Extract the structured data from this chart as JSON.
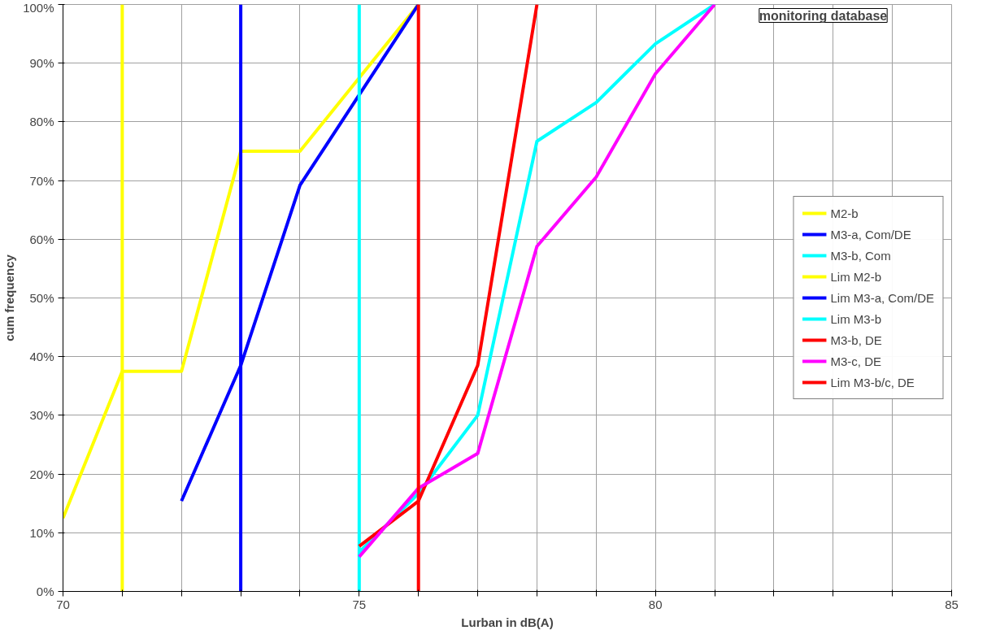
{
  "chart_data": {
    "type": "line",
    "xlabel": "Lurban in dB(A)",
    "ylabel": "cum frequency",
    "annotations": [
      "monitoring database"
    ],
    "xlim": [
      70,
      85
    ],
    "xticks": [
      70,
      {
        "value": 71,
        "label": null
      },
      {
        "value": 72,
        "label": null
      },
      {
        "value": 73,
        "label": null
      },
      {
        "value": 74,
        "label": null
      },
      75,
      {
        "value": 76,
        "label": null
      },
      {
        "value": 77,
        "label": null
      },
      {
        "value": 78,
        "label": null
      },
      {
        "value": 79,
        "label": null
      },
      80,
      {
        "value": 81,
        "label": null
      },
      {
        "value": 82,
        "label": null
      },
      {
        "value": 83,
        "label": null
      },
      {
        "value": 84,
        "label": null
      },
      85
    ],
    "ylim": [
      0,
      100
    ],
    "yticks": [
      {
        "value": 0,
        "label": "0%"
      },
      {
        "value": 10,
        "label": "10%"
      },
      {
        "value": 20,
        "label": "20%"
      },
      {
        "value": 30,
        "label": "30%"
      },
      {
        "value": 40,
        "label": "40%"
      },
      {
        "value": 50,
        "label": "50%"
      },
      {
        "value": 60,
        "label": "60%"
      },
      {
        "value": 70,
        "label": "70%"
      },
      {
        "value": 80,
        "label": "80%"
      },
      {
        "value": 90,
        "label": "90%"
      },
      {
        "value": 100,
        "label": "100%"
      }
    ],
    "grid": true,
    "legend": "right",
    "marker": "none",
    "line_style": "solid",
    "series": [
      {
        "name": "M2-b",
        "color": "#ffff00",
        "x": [
          70,
          71,
          72,
          73,
          74,
          75,
          76
        ],
        "values": [
          12.5,
          37.5,
          37.5,
          75,
          75,
          87.5,
          100
        ]
      },
      {
        "name": "M3-a, Com/DE",
        "color": "#0000ff",
        "x": [
          72,
          73,
          74,
          75,
          76
        ],
        "values": [
          15.4,
          38.5,
          69.2,
          84.6,
          100
        ]
      },
      {
        "name": "M3-b, Com",
        "color": "#00ffff",
        "x": [
          75,
          76,
          77,
          78,
          79,
          80,
          81
        ],
        "values": [
          6.7,
          16.7,
          30,
          76.7,
          83.3,
          93.3,
          100
        ]
      },
      {
        "name": "Lim M2-b",
        "color": "#ffff00",
        "x": [
          71,
          71
        ],
        "values": [
          0,
          100
        ]
      },
      {
        "name": "Lim M3-a, Com/DE",
        "color": "#0000ff",
        "x": [
          73,
          73
        ],
        "values": [
          0,
          100
        ]
      },
      {
        "name": "Lim M3-b",
        "color": "#00ffff",
        "x": [
          75,
          75
        ],
        "values": [
          0,
          100
        ]
      },
      {
        "name": "M3-b, DE",
        "color": "#ff0000",
        "x": [
          75,
          76,
          77,
          78
        ],
        "values": [
          7.7,
          15.4,
          38.5,
          100
        ]
      },
      {
        "name": "M3-c, DE",
        "color": "#ff00ff",
        "x": [
          75,
          76,
          77,
          78,
          79,
          80,
          81
        ],
        "values": [
          5.9,
          17.6,
          23.5,
          58.8,
          70.6,
          88.2,
          100
        ]
      },
      {
        "name": "Lim M3-b/c, DE",
        "color": "#ff0000",
        "x": [
          76,
          76
        ],
        "values": [
          0,
          100
        ]
      }
    ]
  }
}
